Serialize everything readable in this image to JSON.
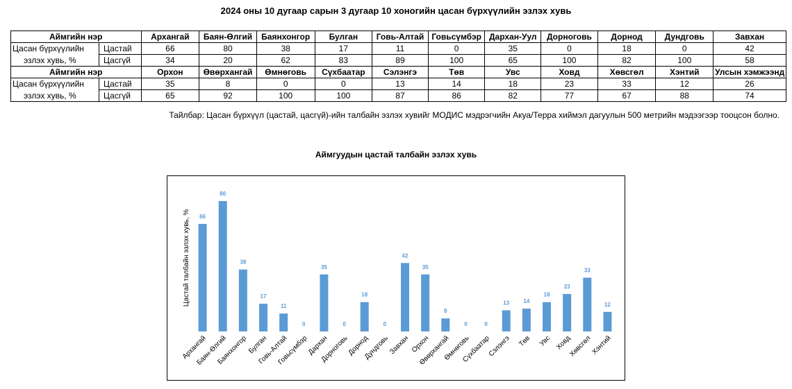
{
  "title": "2024 оны 10 дугаар сарын 3 дугаар 10 хоногийн цасан бүрхүүлийн эзлэх хувь",
  "table": {
    "aimag_header": "Аймгийн нэр",
    "row_label_line1": "Цасан бүрхүүлийн",
    "row_label_line2": "эзлэх хувь, %",
    "snow_label": "Цастай",
    "nosnow_label": "Цасгүй",
    "block1": {
      "names": [
        "Архангай",
        "Баян-Өлгий",
        "Баянхонгор",
        "Булган",
        "Говь-Алтай",
        "Говьсүмбэр",
        "Дархан-Уул",
        "Дорноговь",
        "Дорнод",
        "Дундговь",
        "Завхан"
      ],
      "snow": [
        "66",
        "80",
        "38",
        "17",
        "11",
        "0",
        "35",
        "0",
        "18",
        "0",
        "42"
      ],
      "nosnow": [
        "34",
        "20",
        "62",
        "83",
        "89",
        "100",
        "65",
        "100",
        "82",
        "100",
        "58"
      ]
    },
    "block2": {
      "names": [
        "Орхон",
        "Өвөрхангай",
        "Өмнөговь",
        "Сүхбаатар",
        "Сэлэнгэ",
        "Төв",
        "Увс",
        "Ховд",
        "Хөвсгөл",
        "Хэнтий",
        "Улсын хэмжээнд"
      ],
      "snow": [
        "35",
        "8",
        "0",
        "0",
        "13",
        "14",
        "18",
        "23",
        "33",
        "12",
        "26"
      ],
      "nosnow": [
        "65",
        "92",
        "100",
        "100",
        "87",
        "86",
        "82",
        "77",
        "67",
        "88",
        "74"
      ]
    }
  },
  "note": "Тайлбар: Цасан бүрхүүл (цастай, цасгүй)-ийн талбайн эзлэх хувийг МОДИС мэдрэгчийн Акуа/Терра хиймэл дагуулын 500 метрийн мэдээгээр тооцсон болно.",
  "colors": {
    "bar": "#5b9bd5",
    "label": "#5b9bd5"
  },
  "chart_data": {
    "type": "bar",
    "title": "Аймгуудын цастай талбайн эзлэх хувь",
    "xlabel": "",
    "ylabel": "Цастай талбайн эзлэх хувь, %",
    "ylim": [
      0,
      80
    ],
    "grid": false,
    "categories": [
      "Архангай",
      "Баян-Өлгий",
      "Баянхонгор",
      "Булган",
      "Говь-Алтай",
      "Говьсүмбэр",
      "Дархан",
      "Дорноговь",
      "Дорнод",
      "Дундговь",
      "Завхан",
      "Орхон",
      "Өвөрхангай",
      "Өмнөговь",
      "Сүхбаатар",
      "Сэлэнгэ",
      "Төв",
      "Увс",
      "Ховд",
      "Хөвсгөл",
      "Хэнтий"
    ],
    "values": [
      66,
      80,
      38,
      17,
      11,
      0,
      35,
      0,
      18,
      0,
      42,
      35,
      8,
      0,
      0,
      13,
      14,
      18,
      23,
      33,
      12
    ]
  }
}
